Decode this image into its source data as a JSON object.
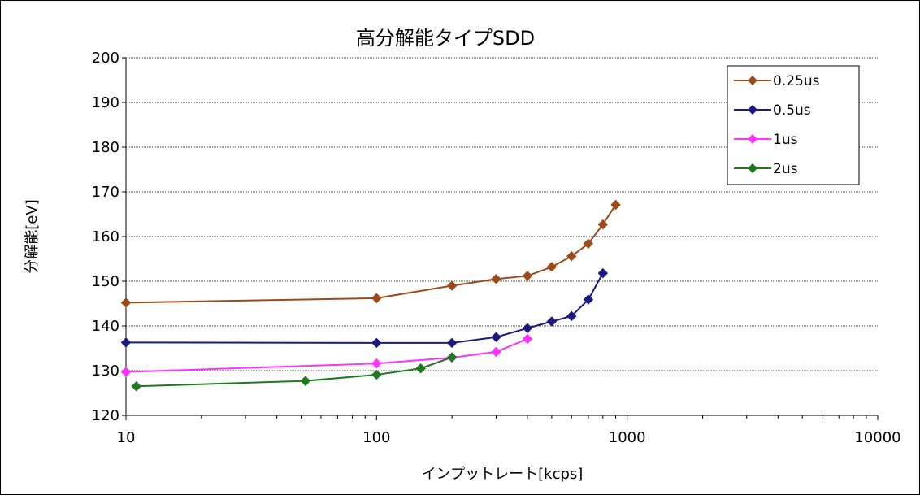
{
  "chart_data": {
    "type": "line",
    "title": "高分解能タイプSDD",
    "xlabel": "インプットレート[kcps]",
    "ylabel": "分解能[eV]",
    "xscale": "log",
    "xlim": [
      10,
      10000
    ],
    "ylim": [
      120,
      200
    ],
    "x_ticks": [
      "10",
      "100",
      "1000",
      "10000"
    ],
    "y_ticks": [
      "120",
      "130",
      "140",
      "150",
      "160",
      "170",
      "180",
      "190",
      "200"
    ],
    "grid": "horizontal",
    "legend_position": "top-right",
    "series": [
      {
        "name": "0.25us",
        "color": "#9C4A1A",
        "x": [
          10,
          100,
          200,
          300,
          400,
          500,
          600,
          700,
          800,
          900
        ],
        "y": [
          145.2,
          146.2,
          149.0,
          150.5,
          151.2,
          153.2,
          155.6,
          158.4,
          162.7,
          167.1
        ]
      },
      {
        "name": "0.5us",
        "color": "#1A1A80",
        "x": [
          10,
          100,
          200,
          300,
          400,
          500,
          600,
          700,
          800
        ],
        "y": [
          136.3,
          136.2,
          136.2,
          137.5,
          139.5,
          141.0,
          142.2,
          145.9,
          151.8
        ]
      },
      {
        "name": "1us",
        "color": "#FF33FF",
        "x": [
          10,
          100,
          200,
          300,
          400
        ],
        "y": [
          129.7,
          131.6,
          132.9,
          134.2,
          137.1
        ]
      },
      {
        "name": "2us",
        "color": "#1E7A1E",
        "x": [
          11,
          52,
          100,
          150,
          200
        ],
        "y": [
          126.5,
          127.7,
          129.1,
          130.5,
          133.0
        ]
      }
    ]
  }
}
